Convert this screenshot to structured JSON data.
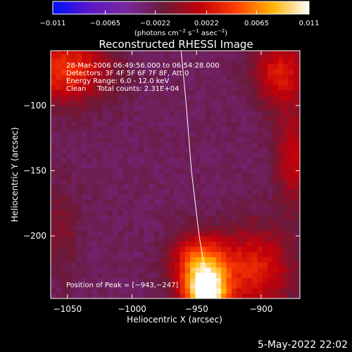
{
  "chart_data": {
    "type": "heatmap",
    "title": "Reconstructed RHESSI Image",
    "xlabel": "Heliocentric X (arcsec)",
    "ylabel": "Heliocentric Y (arcsec)",
    "xlim": [
      -1063,
      -870
    ],
    "ylim": [
      -248,
      -58
    ],
    "x_ticks": [
      -1050,
      -1000,
      -950,
      -900
    ],
    "x_tick_labels": [
      "−1050",
      "−1000",
      "−950",
      "−900"
    ],
    "y_ticks": [
      -100,
      -150,
      -200
    ],
    "y_tick_labels": [
      "−100",
      "−150",
      "−200"
    ],
    "colorbar": {
      "range": [
        -0.011,
        0.011
      ],
      "ticks": [
        -0.011,
        -0.0065,
        -0.0022,
        0.0022,
        0.0065,
        0.011
      ],
      "tick_labels": [
        "−0.011",
        "−0.0065",
        "−0.0022",
        "0.0022",
        "0.0065",
        "0.011"
      ],
      "unit_parts": [
        "(photons cm",
        "−2",
        " s",
        "−1",
        " asec",
        "−2",
        ")"
      ],
      "colors": [
        "#0010ff",
        "#5a17c7",
        "#7a2a9e",
        "#6a1a3a",
        "#c0000b",
        "#ff3c00",
        "#ffb400",
        "#ffffff"
      ]
    },
    "annotations": [
      "28-Mar-2006 06:49:56.000 to 06:54:28.000",
      "Detectors: 3F 4F 5F 6F 7F 8F, Att 0",
      "Energy Range: 6.0 - 12.0 keV",
      "Clean     Total counts: 2.31E+04"
    ],
    "peak_label": "Position of Peak = [−943,−247]",
    "peak": [
      -943,
      -247
    ],
    "sources": [
      {
        "x": -943,
        "y": -243,
        "sx": 12,
        "sy": 14,
        "value": 0.0115
      },
      {
        "x": -948,
        "y": -218,
        "sx": 15,
        "sy": 14,
        "value": 0.0045
      },
      {
        "x": -905,
        "y": -225,
        "sx": 20,
        "sy": 22,
        "value": 0.0032
      },
      {
        "x": -1052,
        "y": -72,
        "sx": 24,
        "sy": 18,
        "value": 0.004
      },
      {
        "x": -885,
        "y": -75,
        "sx": 14,
        "sy": 18,
        "value": 0.003
      },
      {
        "x": -875,
        "y": -140,
        "sx": 10,
        "sy": 25,
        "value": 0.0018
      },
      {
        "x": -1055,
        "y": -195,
        "sx": 10,
        "sy": 25,
        "value": -0.0008
      }
    ],
    "background": -0.0026,
    "limb": {
      "color": "#ffffff",
      "points": [
        [
          -962,
          -58
        ],
        [
          -958,
          -100
        ],
        [
          -954,
          -150
        ],
        [
          -948,
          -200
        ],
        [
          -940,
          -248
        ]
      ]
    },
    "footer_timestamp": "5-May-2022 22:02"
  }
}
